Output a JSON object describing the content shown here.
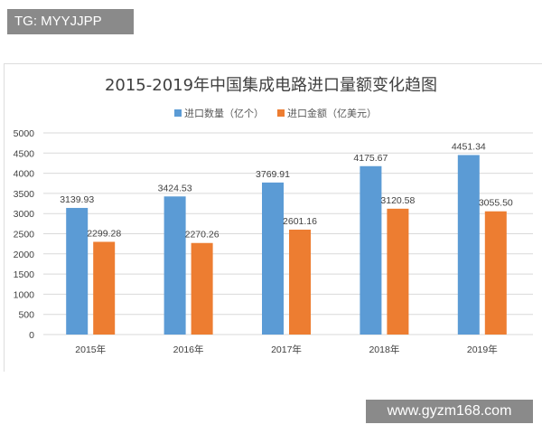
{
  "watermarks": {
    "top_left": "TG: MYYJJPP",
    "bottom_right": "www.gyzm168.com"
  },
  "chart_data": {
    "type": "bar",
    "title": "2015-2019年中国集成电路进口量额变化趋图",
    "categories": [
      "2015年",
      "2016年",
      "2017年",
      "2018年",
      "2019年"
    ],
    "series": [
      {
        "name": "进口数量（亿个）",
        "color": "#5b9bd5",
        "values": [
          3139.93,
          3424.53,
          3769.91,
          4175.67,
          4451.34
        ],
        "labels": [
          "3139.93",
          "3424.53",
          "3769.91",
          "4175.67",
          "4451.34"
        ]
      },
      {
        "name": "进口金额（亿美元）",
        "color": "#ed7d31",
        "values": [
          2299.28,
          2270.26,
          2601.16,
          3120.58,
          3055.5
        ],
        "labels": [
          "2299.28",
          "2270.26",
          "2601.16",
          "3120.58",
          "3055.50"
        ]
      }
    ],
    "yticks": [
      "0",
      "500",
      "1000",
      "1500",
      "2000",
      "2500",
      "3000",
      "3500",
      "4000",
      "4500",
      "5000"
    ],
    "ylim": [
      0,
      5000
    ],
    "grid": true,
    "legend": "top-center",
    "xlabel": "",
    "ylabel": ""
  }
}
